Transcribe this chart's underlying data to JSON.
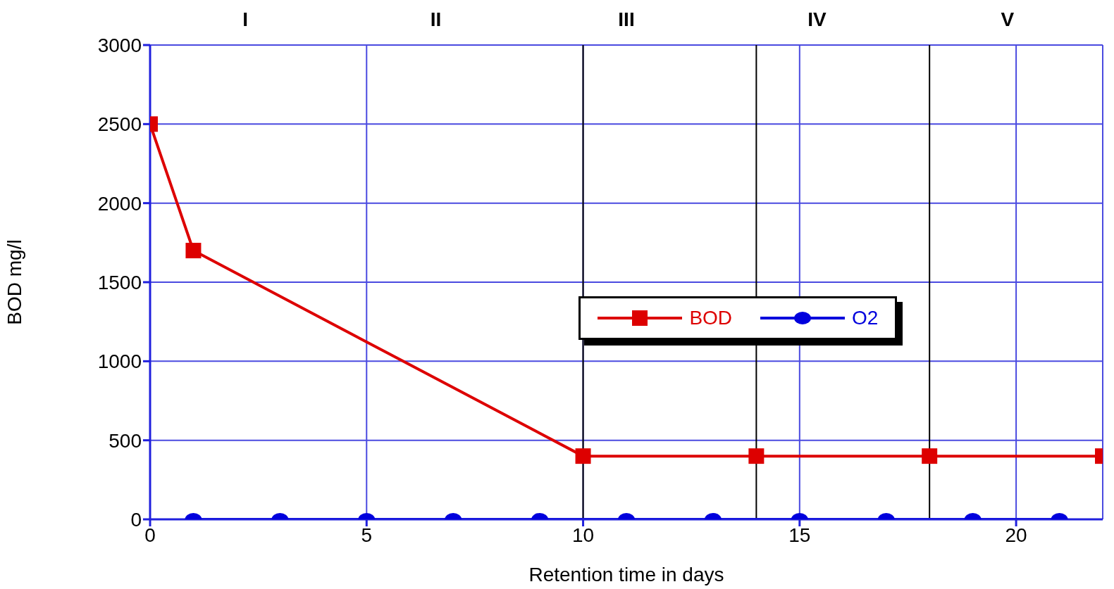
{
  "chart_data": {
    "type": "line",
    "xlabel": "Retention time in days",
    "ylabel": "BOD mg/l",
    "xlim": [
      0,
      22
    ],
    "xticks": [
      0,
      5,
      10,
      15,
      20
    ],
    "ylim": [
      0,
      3000
    ],
    "yticks": [
      0,
      500,
      1000,
      1500,
      2000,
      2500,
      3000
    ],
    "grid": true,
    "legend": "right",
    "line_style": "solid",
    "series": [
      {
        "name": "BOD",
        "color": "#dd0000",
        "marker": "square",
        "x": [
          0,
          1,
          10,
          14,
          18,
          22
        ],
        "values": [
          2500,
          1700,
          400,
          400,
          400,
          400
        ]
      },
      {
        "name": "O2",
        "color": "#0000dd",
        "marker": "circle",
        "x": [
          1,
          3,
          5,
          7,
          9,
          11,
          13,
          15,
          17,
          19,
          21
        ],
        "values": [
          0,
          0,
          0,
          0,
          0,
          0,
          0,
          0,
          0,
          0,
          0
        ]
      }
    ],
    "ref_lines": [
      {
        "axis": "x",
        "value": 10,
        "color": "#000000"
      },
      {
        "axis": "x",
        "value": 14,
        "color": "#000000"
      },
      {
        "axis": "x",
        "value": 18,
        "color": "#000000"
      }
    ],
    "annotations": [
      "I",
      "II",
      "III",
      "IV",
      "V"
    ]
  }
}
